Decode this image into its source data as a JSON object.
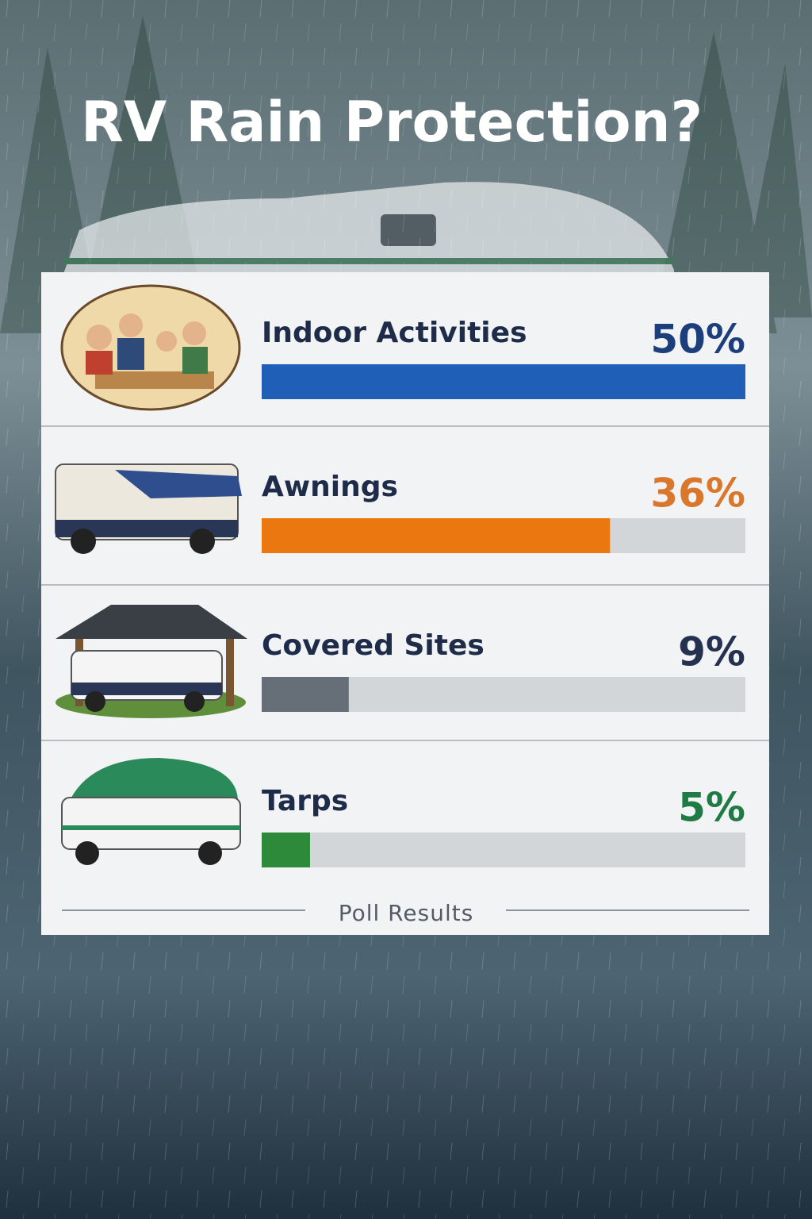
{
  "chart_data": {
    "type": "bar",
    "title": "RV Rain Protection?",
    "categories": [
      "Indoor Activities",
      "Awnings",
      "Covered Sites",
      "Tarps"
    ],
    "values": [
      50,
      36,
      9,
      5
    ],
    "value_labels": [
      "50%",
      "36%",
      "9%",
      "5%"
    ],
    "colors": [
      "#1f5fb8",
      "#ea7710",
      "#666e78",
      "#2c8a3a"
    ],
    "label_colors": [
      "#1c3f7c",
      "#d9782c",
      "#25324f",
      "#1f7a45"
    ],
    "footer": "Poll Results"
  }
}
